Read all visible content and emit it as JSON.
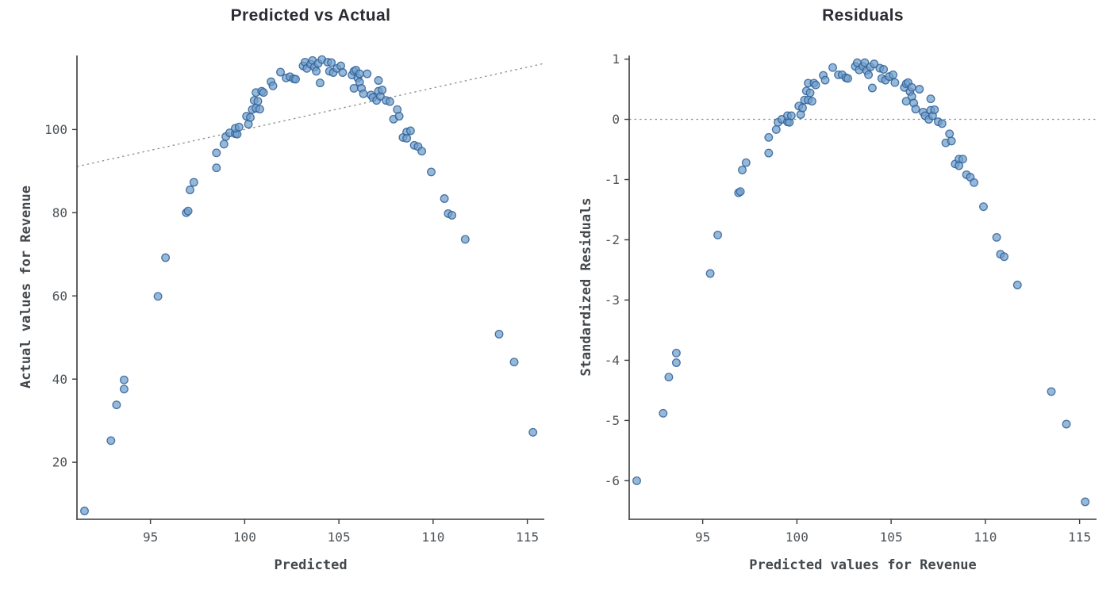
{
  "page": {
    "background": "#ffffff",
    "description": "Two model-diagnostic scatter plots: predicted vs actual values with identity reference line, and standardized residuals vs predicted values with zero reference line"
  },
  "style": {
    "marker_fill": "#6f9ecb",
    "marker_edge": "#2f5f96",
    "marker_fill_opacity": 0.72,
    "marker_edge_opacity": 0.85,
    "ref_line_color": "#8c8c8c",
    "spine_color": "#3a3a3e",
    "tick_label_color": "#4d5358",
    "title_color": "#2b2b33",
    "axis_label_color": "#43484d"
  },
  "chart_data": [
    {
      "type": "scatter",
      "title": "Predicted vs Actual",
      "xlabel": "Predicted",
      "ylabel": "Actual values for Revenue",
      "x_ticks": [
        95,
        100,
        105,
        110,
        115
      ],
      "y_ticks": [
        20,
        40,
        60,
        80,
        100
      ],
      "xlim": [
        91.1,
        115.9
      ],
      "ylim": [
        6.3,
        117.8
      ],
      "grid": false,
      "legend": false,
      "ref_line": {
        "kind": "identity",
        "style": "dashed"
      },
      "x": [
        91.5,
        92.9,
        93.2,
        93.6,
        93.6,
        95.4,
        95.8,
        96.9,
        97.0,
        97.1,
        97.3,
        98.5,
        98.5,
        98.9,
        99.0,
        99.2,
        99.5,
        99.6,
        99.5,
        99.7,
        100.1,
        100.2,
        100.3,
        100.4,
        100.6,
        100.8,
        100.5,
        100.7,
        100.6,
        100.9,
        101.0,
        101.4,
        101.5,
        101.9,
        102.2,
        102.4,
        102.6,
        102.7,
        103.1,
        103.2,
        103.3,
        103.5,
        103.6,
        103.7,
        103.8,
        103.9,
        104.0,
        104.1,
        104.4,
        104.5,
        104.6,
        104.7,
        104.9,
        105.1,
        105.2,
        105.7,
        105.8,
        105.8,
        105.9,
        106.0,
        106.1,
        106.1,
        106.2,
        106.3,
        106.5,
        106.7,
        106.8,
        107.0,
        107.1,
        107.1,
        107.2,
        107.3,
        107.5,
        107.7,
        107.9,
        108.1,
        108.2,
        108.4,
        108.6,
        108.6,
        108.8,
        109.0,
        109.2,
        109.4,
        109.9,
        110.6,
        110.8,
        111.0,
        111.7,
        113.5,
        114.3,
        115.3
      ],
      "y": [
        8.3,
        25.2,
        33.8,
        37.6,
        39.8,
        59.9,
        69.2,
        80.0,
        80.4,
        85.5,
        87.3,
        90.8,
        94.4,
        96.5,
        98.3,
        99.2,
        99.0,
        98.9,
        100.3,
        100.6,
        103.2,
        101.3,
        102.9,
        104.8,
        105.1,
        104.9,
        107.0,
        106.8,
        108.9,
        109.2,
        108.9,
        111.5,
        110.5,
        113.8,
        112.4,
        112.7,
        112.2,
        112.1,
        115.3,
        116.2,
        114.7,
        115.7,
        116.6,
        115.0,
        114.0,
        115.9,
        111.2,
        116.8,
        116.2,
        114.0,
        116.1,
        113.7,
        114.7,
        115.3,
        113.7,
        113.1,
        114.0,
        109.9,
        114.3,
        112.4,
        113.4,
        111.4,
        109.9,
        108.6,
        113.4,
        108.3,
        107.7,
        107.0,
        111.8,
        109.2,
        108.0,
        109.5,
        107.0,
        106.7,
        102.5,
        104.8,
        103.2,
        98.1,
        99.4,
        97.9,
        99.7,
        96.2,
        95.9,
        94.8,
        89.8,
        83.4,
        79.8,
        79.4,
        73.6,
        50.8,
        44.1,
        27.2
      ]
    },
    {
      "type": "scatter",
      "title": "Residuals",
      "xlabel": "Predicted values for Revenue",
      "ylabel": "Standardized Residuals",
      "x_ticks": [
        95,
        100,
        105,
        110,
        115
      ],
      "y_ticks": [
        1,
        0,
        -1,
        -2,
        -3,
        -4,
        -5,
        -6
      ],
      "xlim": [
        91.1,
        115.9
      ],
      "ylim": [
        -6.64,
        1.06
      ],
      "grid": false,
      "legend": false,
      "ref_line": {
        "kind": "hline",
        "y": 0,
        "style": "dashed"
      },
      "x": [
        91.5,
        92.9,
        93.2,
        93.6,
        93.6,
        95.4,
        95.8,
        96.9,
        97.0,
        97.1,
        97.3,
        98.5,
        98.5,
        98.9,
        99.0,
        99.2,
        99.5,
        99.6,
        99.5,
        99.7,
        100.1,
        100.2,
        100.3,
        100.4,
        100.6,
        100.8,
        100.5,
        100.7,
        100.6,
        100.9,
        101.0,
        101.4,
        101.5,
        101.9,
        102.2,
        102.4,
        102.6,
        102.7,
        103.1,
        103.2,
        103.3,
        103.5,
        103.6,
        103.7,
        103.8,
        103.9,
        104.0,
        104.1,
        104.4,
        104.5,
        104.6,
        104.7,
        104.9,
        105.1,
        105.2,
        105.7,
        105.8,
        105.8,
        105.9,
        106.0,
        106.1,
        106.1,
        106.2,
        106.3,
        106.5,
        106.7,
        106.8,
        107.0,
        107.1,
        107.1,
        107.2,
        107.3,
        107.5,
        107.7,
        107.9,
        108.1,
        108.2,
        108.4,
        108.6,
        108.6,
        108.8,
        109.0,
        109.2,
        109.4,
        109.9,
        110.6,
        110.8,
        111.0,
        111.7,
        113.5,
        114.3,
        115.3
      ],
      "y": [
        -6.0,
        -4.88,
        -4.28,
        -4.04,
        -3.88,
        -2.56,
        -1.92,
        -1.22,
        -1.2,
        -0.84,
        -0.72,
        -0.56,
        -0.3,
        -0.17,
        -0.05,
        0.0,
        -0.04,
        -0.05,
        0.06,
        0.06,
        0.22,
        0.08,
        0.19,
        0.32,
        0.32,
        0.3,
        0.47,
        0.44,
        0.6,
        0.6,
        0.57,
        0.73,
        0.65,
        0.86,
        0.74,
        0.74,
        0.69,
        0.68,
        0.88,
        0.94,
        0.82,
        0.88,
        0.94,
        0.81,
        0.74,
        0.87,
        0.52,
        0.92,
        0.85,
        0.68,
        0.83,
        0.65,
        0.71,
        0.74,
        0.61,
        0.53,
        0.59,
        0.3,
        0.61,
        0.46,
        0.53,
        0.38,
        0.27,
        0.17,
        0.5,
        0.12,
        0.06,
        0.0,
        0.34,
        0.15,
        0.06,
        0.16,
        -0.04,
        -0.07,
        -0.39,
        -0.24,
        -0.36,
        -0.74,
        -0.66,
        -0.77,
        -0.66,
        -0.92,
        -0.96,
        -1.05,
        -1.45,
        -1.96,
        -2.24,
        -2.28,
        -2.75,
        -4.52,
        -5.06,
        -6.35
      ]
    }
  ]
}
